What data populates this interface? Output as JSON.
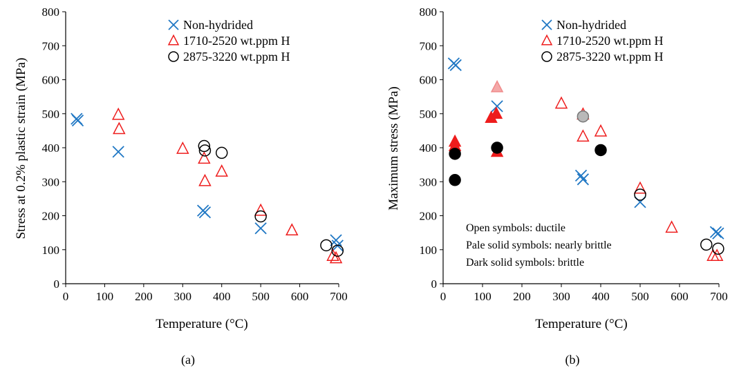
{
  "chart_data": [
    {
      "type": "scatter",
      "panel_label": "(a)",
      "xlabel": "Temperature (°C)",
      "ylabel": "Stress at 0.2% plastic strain (MPa)",
      "xlim": [
        0,
        700
      ],
      "ylim": [
        0,
        800
      ],
      "xticks": [
        0,
        100,
        200,
        300,
        400,
        500,
        600,
        700
      ],
      "yticks": [
        0,
        100,
        200,
        300,
        400,
        500,
        600,
        700,
        800
      ],
      "legend_position": "top-right",
      "series": [
        {
          "name": "Non-hydrided",
          "marker": "x",
          "color": "#1f77c4",
          "points": [
            {
              "x": 28,
              "y": 485
            },
            {
              "x": 31,
              "y": 480
            },
            {
              "x": 135,
              "y": 388
            },
            {
              "x": 352,
              "y": 215
            },
            {
              "x": 357,
              "y": 210
            },
            {
              "x": 500,
              "y": 163
            },
            {
              "x": 693,
              "y": 128
            },
            {
              "x": 697,
              "y": 112
            }
          ]
        },
        {
          "name": "1710-2520 wt.ppm H",
          "marker": "triangle",
          "color": "#ee1c1c",
          "points": [
            {
              "x": 135,
              "y": 497
            },
            {
              "x": 137,
              "y": 455
            },
            {
              "x": 300,
              "y": 397
            },
            {
              "x": 355,
              "y": 368
            },
            {
              "x": 357,
              "y": 302
            },
            {
              "x": 400,
              "y": 330
            },
            {
              "x": 500,
              "y": 215
            },
            {
              "x": 580,
              "y": 157
            },
            {
              "x": 685,
              "y": 82
            },
            {
              "x": 693,
              "y": 75
            }
          ]
        },
        {
          "name": "2875-3220 wt.ppm H",
          "marker": "circle",
          "color": "#000000",
          "points": [
            {
              "x": 355,
              "y": 405
            },
            {
              "x": 357,
              "y": 392
            },
            {
              "x": 400,
              "y": 385
            },
            {
              "x": 500,
              "y": 198
            },
            {
              "x": 668,
              "y": 113
            },
            {
              "x": 697,
              "y": 97
            }
          ]
        }
      ]
    },
    {
      "type": "scatter",
      "panel_label": "(b)",
      "xlabel": "Temperature (°C)",
      "ylabel": "Maximum stress (MPa)",
      "xlim": [
        0,
        700
      ],
      "ylim": [
        0,
        800
      ],
      "xticks": [
        0,
        100,
        200,
        300,
        400,
        500,
        600,
        700
      ],
      "yticks": [
        0,
        100,
        200,
        300,
        400,
        500,
        600,
        700,
        800
      ],
      "legend_position": "top-right",
      "annotations": [
        "Open symbols: ductile",
        "Pale solid symbols: nearly brittle",
        "Dark solid symbols: brittle"
      ],
      "series": [
        {
          "name": "Non-hydrided",
          "marker": "x",
          "color": "#1f77c4",
          "points": [
            {
              "x": 27,
              "y": 648
            },
            {
              "x": 32,
              "y": 643
            },
            {
              "x": 137,
              "y": 522
            },
            {
              "x": 350,
              "y": 318
            },
            {
              "x": 355,
              "y": 307
            },
            {
              "x": 500,
              "y": 240
            },
            {
              "x": 692,
              "y": 152
            },
            {
              "x": 698,
              "y": 148
            }
          ]
        },
        {
          "name": "1710-2520 wt.ppm H",
          "marker": "triangle",
          "color": "#ee1c1c",
          "points": [
            {
              "x": 30,
              "y": 418,
              "style": "dark"
            },
            {
              "x": 30,
              "y": 405,
              "style": "dark"
            },
            {
              "x": 122,
              "y": 488,
              "style": "dark"
            },
            {
              "x": 135,
              "y": 500,
              "style": "dark"
            },
            {
              "x": 137,
              "y": 388,
              "style": "dark"
            },
            {
              "x": 137,
              "y": 578,
              "style": "pale"
            },
            {
              "x": 300,
              "y": 530,
              "style": "open"
            },
            {
              "x": 355,
              "y": 498,
              "style": "open"
            },
            {
              "x": 355,
              "y": 433,
              "style": "open"
            },
            {
              "x": 400,
              "y": 448,
              "style": "open"
            },
            {
              "x": 500,
              "y": 280,
              "style": "open"
            },
            {
              "x": 580,
              "y": 165,
              "style": "open"
            },
            {
              "x": 685,
              "y": 82,
              "style": "open"
            },
            {
              "x": 695,
              "y": 82,
              "style": "open"
            }
          ]
        },
        {
          "name": "2875-3220 wt.ppm H",
          "marker": "circle",
          "color": "#000000",
          "points": [
            {
              "x": 30,
              "y": 382,
              "style": "dark"
            },
            {
              "x": 30,
              "y": 305,
              "style": "dark"
            },
            {
              "x": 137,
              "y": 400,
              "style": "dark"
            },
            {
              "x": 355,
              "y": 492,
              "style": "pale"
            },
            {
              "x": 400,
              "y": 393,
              "style": "dark"
            },
            {
              "x": 500,
              "y": 262,
              "style": "open"
            },
            {
              "x": 668,
              "y": 115,
              "style": "open"
            },
            {
              "x": 698,
              "y": 103,
              "style": "open"
            }
          ]
        }
      ]
    }
  ]
}
